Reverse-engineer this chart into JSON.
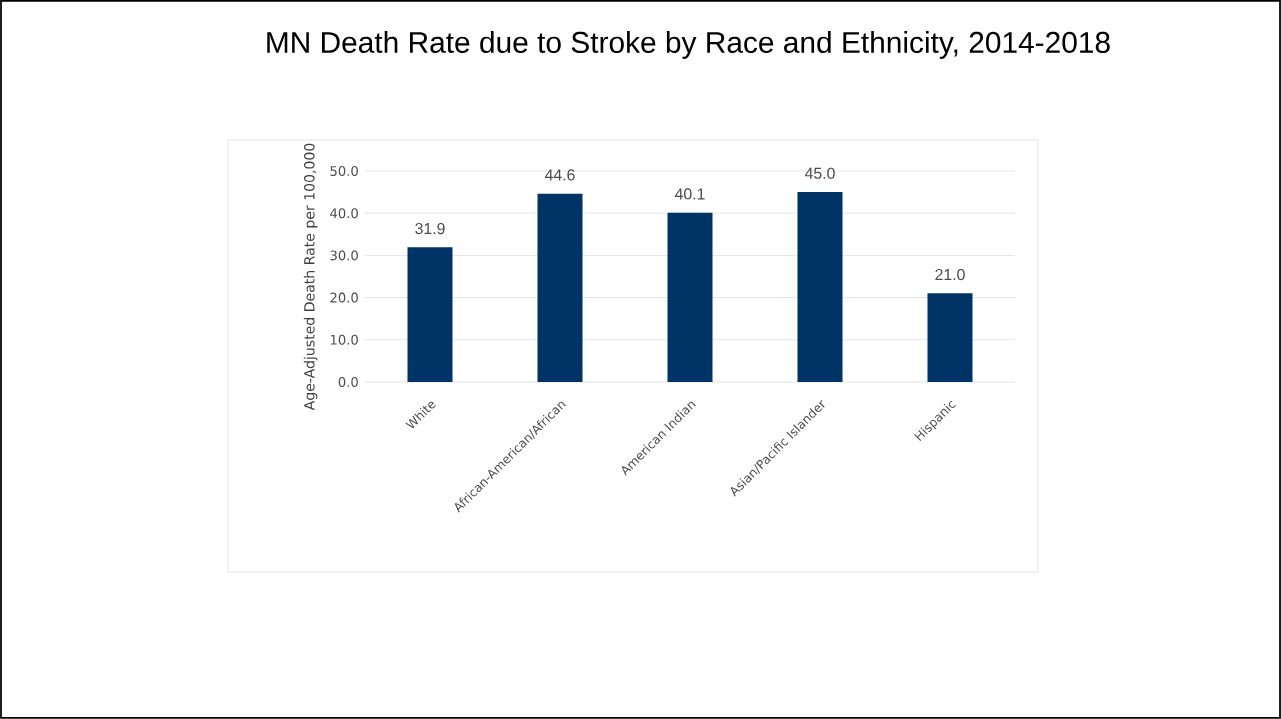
{
  "chart_data": {
    "type": "bar",
    "title": "MN Death Rate due to Stroke by Race and Ethnicity, 2014-2018",
    "ylabel": "Age-Adjusted Death Rate per 100,000",
    "categories": [
      "White",
      "African-American/African",
      "American Indian",
      "Asian/Pacific Islander",
      "Hispanic"
    ],
    "values": [
      31.9,
      44.6,
      40.1,
      45.0,
      21.0
    ],
    "value_labels": [
      "31.9",
      "44.6",
      "40.1",
      "45.0",
      "21.0"
    ],
    "color": "#003366",
    "ylim": [
      0,
      50
    ],
    "yticks": [
      {
        "value": 0,
        "label": "0.0"
      },
      {
        "value": 10,
        "label": "10.0"
      },
      {
        "value": 20,
        "label": "20.0"
      },
      {
        "value": 30,
        "label": "30.0"
      },
      {
        "value": 40,
        "label": "40.0"
      },
      {
        "value": 50,
        "label": "50.0"
      }
    ],
    "grid": "y"
  }
}
